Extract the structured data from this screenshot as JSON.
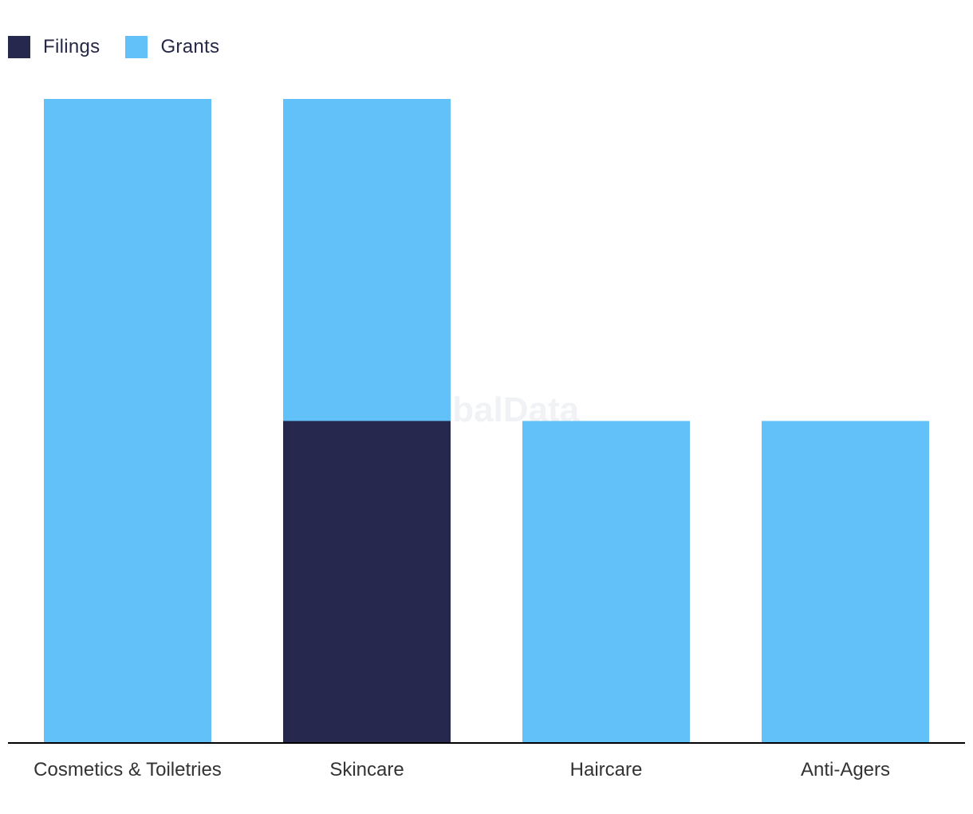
{
  "chart_data": {
    "type": "bar",
    "stacked": true,
    "categories": [
      "Cosmetics & Toiletries",
      "Skincare",
      "Haircare",
      "Anti-Agers"
    ],
    "series": [
      {
        "name": "Filings",
        "color": "#26284d",
        "values": [
          0,
          1,
          0,
          0
        ]
      },
      {
        "name": "Grants",
        "color": "#62c1f8",
        "values": [
          2,
          1,
          1,
          1
        ]
      }
    ],
    "ylim": [
      0,
      2
    ],
    "grid": false,
    "legend_position": "top-left",
    "watermark": "GlobalData"
  }
}
